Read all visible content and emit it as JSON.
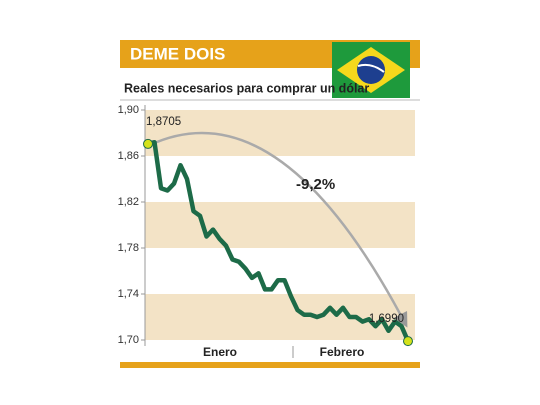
{
  "chart_data": {
    "type": "line",
    "title": "DEME DOIS",
    "subtitle": "Reales necesarios para comprar un dólar",
    "annotation": "-9,2%",
    "x_labels": [
      "Enero",
      "Febrero"
    ],
    "values": [
      1.8705,
      1.872,
      1.832,
      1.83,
      1.836,
      1.852,
      1.84,
      1.812,
      1.808,
      1.79,
      1.796,
      1.788,
      1.782,
      1.77,
      1.768,
      1.762,
      1.754,
      1.758,
      1.744,
      1.744,
      1.752,
      1.752,
      1.738,
      1.726,
      1.722,
      1.722,
      1.72,
      1.722,
      1.728,
      1.722,
      1.728,
      1.72,
      1.72,
      1.716,
      1.718,
      1.712,
      1.718,
      1.708,
      1.716,
      1.712,
      1.699
    ],
    "value_labels": [
      "1,8705",
      null,
      null,
      null,
      null,
      null,
      null,
      null,
      null,
      null,
      null,
      null,
      null,
      null,
      null,
      null,
      null,
      null,
      null,
      null,
      null,
      null,
      null,
      null,
      null,
      null,
      null,
      null,
      null,
      null,
      null,
      null,
      null,
      null,
      null,
      null,
      null,
      null,
      null,
      null,
      "1,6990"
    ],
    "color": "#1d6b48",
    "band_color": "#f3e3c6",
    "ylim": [
      1.695,
      1.9
    ],
    "yticks": [
      {
        "value": 1.9,
        "label": "1,90"
      },
      {
        "value": 1.86,
        "label": "1,86"
      },
      {
        "value": 1.82,
        "label": "1,82"
      },
      {
        "value": 1.78,
        "label": "1,78"
      },
      {
        "value": 1.74,
        "label": "1,74"
      },
      {
        "value": 1.7,
        "label": "1,70"
      }
    ]
  }
}
